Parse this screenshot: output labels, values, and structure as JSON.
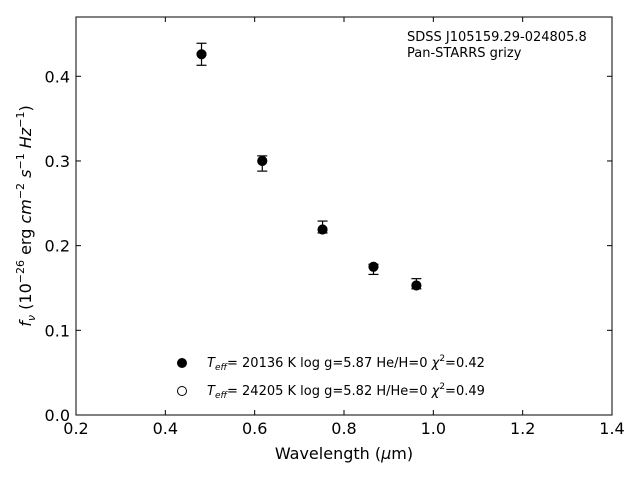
{
  "chart_data": {
    "type": "scatter",
    "xlabel": "Wavelength (μm)",
    "ylabel": "f_ν (10^-26 erg cm^-2 s^-1 Hz^-1)",
    "xlim": [
      0.2,
      1.4
    ],
    "ylim": [
      0.0,
      0.47
    ],
    "xticks": [
      0.2,
      0.4,
      0.6,
      0.8,
      1.0,
      1.2,
      1.4
    ],
    "yticks": [
      0.0,
      0.1,
      0.2,
      0.3,
      0.4
    ],
    "grid": false,
    "annotation": [
      "SDSS J105159.29-024805.8",
      "Pan-STARRS grizy"
    ],
    "series": [
      {
        "kind": "observed",
        "x": [
          0.481,
          0.617,
          0.752,
          0.866,
          0.962
        ],
        "y": [
          0.426,
          0.297,
          0.222,
          0.172,
          0.155
        ],
        "yerr": [
          0.013,
          0.009,
          0.007,
          0.006,
          0.006
        ]
      },
      {
        "kind": "model-hydrogen",
        "marker": "filled",
        "x": [
          0.481,
          0.617,
          0.752,
          0.866,
          0.962
        ],
        "y": [
          0.426,
          0.3,
          0.219,
          0.175,
          0.153
        ]
      },
      {
        "kind": "model-helium",
        "marker": "open",
        "x": [
          0.481,
          0.617,
          0.752,
          0.866,
          0.962
        ],
        "y": [
          0.426,
          0.3,
          0.219,
          0.175,
          0.153
        ]
      }
    ],
    "legend": {
      "placement": "lower-center",
      "entries": [
        {
          "marker": "filled",
          "teff": "20136",
          "logg": "5.87",
          "comp": "He/H=0",
          "chi2": "0.42"
        },
        {
          "marker": "open",
          "teff": "24205",
          "logg": "5.82",
          "comp": "H/He=0",
          "chi2": "0.49"
        }
      ]
    }
  }
}
